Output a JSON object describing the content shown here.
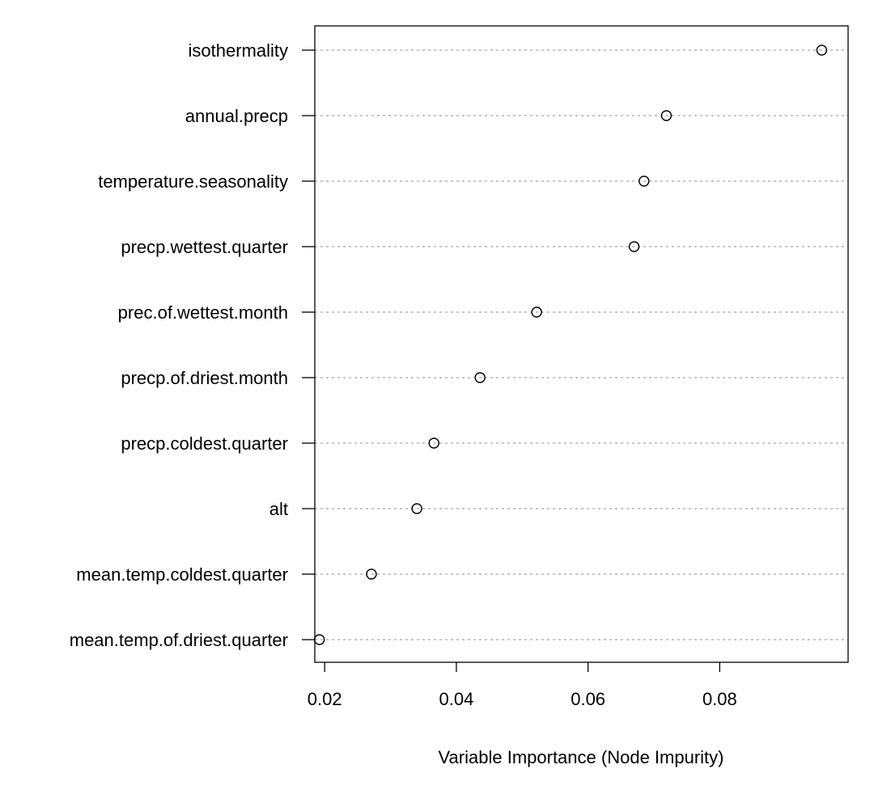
{
  "chart_data": {
    "type": "scatter",
    "title": "",
    "xlabel": "Variable Importance (Node Impurity)",
    "ylabel": "",
    "xlim": [
      0.0185,
      0.0995
    ],
    "x_ticks": [
      0.02,
      0.04,
      0.06,
      0.08
    ],
    "x_tick_labels": [
      "0.02",
      "0.04",
      "0.06",
      "0.08"
    ],
    "grid": "horizontal dashed",
    "categories": [
      "isothermality",
      "annual.precp",
      "temperature.seasonality",
      "precp.wettest.quarter",
      "prec.of.wettest.month",
      "precp.of.driest.month",
      "precp.coldest.quarter",
      "alt",
      "mean.temp.coldest.quarter",
      "mean.temp.of.driest.quarter"
    ],
    "values": [
      0.0955,
      0.0719,
      0.0685,
      0.067,
      0.0522,
      0.0436,
      0.0366,
      0.034,
      0.0271,
      0.0192
    ]
  }
}
